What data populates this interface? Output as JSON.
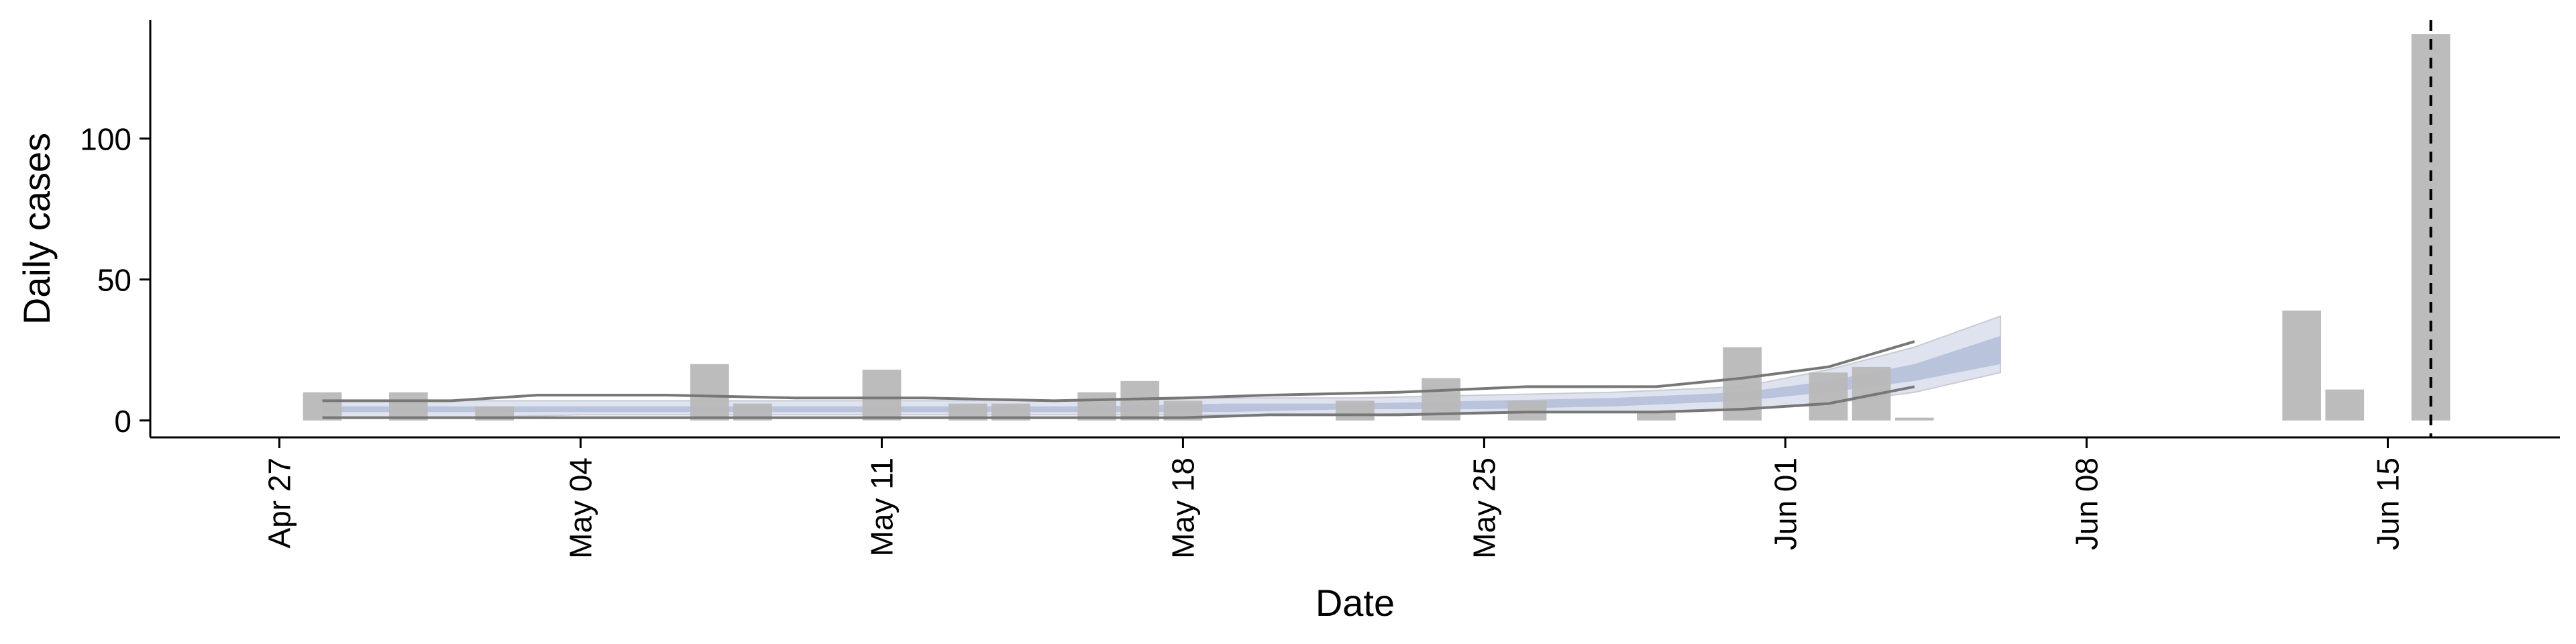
{
  "chart_data": {
    "type": "bar",
    "title": "",
    "xlabel": "Date",
    "ylabel": "Daily cases",
    "ylim": [
      -6,
      142
    ],
    "xlim": [
      "2020-04-24",
      "2020-06-19"
    ],
    "grid": false,
    "legend": "none",
    "y_ticks": [
      0,
      50,
      100
    ],
    "x_ticks": [
      {
        "date": "2020-04-27",
        "label": "Apr 27"
      },
      {
        "date": "2020-05-04",
        "label": "May 04"
      },
      {
        "date": "2020-05-11",
        "label": "May 11"
      },
      {
        "date": "2020-05-18",
        "label": "May 18"
      },
      {
        "date": "2020-05-25",
        "label": "May 25"
      },
      {
        "date": "2020-06-01",
        "label": "Jun 01"
      },
      {
        "date": "2020-06-08",
        "label": "Jun 08"
      },
      {
        "date": "2020-06-15",
        "label": "Jun 15"
      }
    ],
    "reference_line": {
      "date": "2020-06-16",
      "style": "dashed"
    },
    "bars": {
      "color": "#b8b8b8",
      "dates": [
        "2020-04-28",
        "2020-04-30",
        "2020-05-02",
        "2020-05-07",
        "2020-05-08",
        "2020-05-11",
        "2020-05-13",
        "2020-05-14",
        "2020-05-16",
        "2020-05-17",
        "2020-05-18",
        "2020-05-22",
        "2020-05-24",
        "2020-05-26",
        "2020-05-29",
        "2020-05-31",
        "2020-06-02",
        "2020-06-03",
        "2020-06-04",
        "2020-06-13",
        "2020-06-14",
        "2020-06-16"
      ],
      "values": [
        10,
        10,
        5,
        20,
        6,
        18,
        6,
        6,
        10,
        14,
        7,
        7,
        15,
        7,
        3,
        26,
        17,
        19,
        1,
        39,
        11,
        137
      ]
    },
    "band": {
      "dates": [
        "2020-04-28",
        "2020-05-01",
        "2020-05-04",
        "2020-05-07",
        "2020-05-10",
        "2020-05-13",
        "2020-05-16",
        "2020-05-19",
        "2020-05-22",
        "2020-05-25",
        "2020-05-28",
        "2020-05-31",
        "2020-06-02",
        "2020-06-04",
        "2020-06-06"
      ],
      "outer_lower": [
        1,
        1,
        2,
        2,
        2,
        2,
        2,
        2,
        2,
        3,
        3,
        4,
        6,
        10,
        17
      ],
      "outer_upper": [
        7,
        7,
        7,
        7,
        7,
        7,
        7,
        8,
        8,
        9,
        10,
        12,
        18,
        26,
        37
      ],
      "mid_lower": [
        3,
        3,
        3,
        3,
        3,
        3,
        3,
        3,
        4,
        4,
        5,
        7,
        10,
        14,
        20
      ],
      "mid_upper": [
        5,
        5,
        5,
        5,
        5,
        5,
        5,
        6,
        6,
        7,
        8,
        10,
        14,
        20,
        30
      ],
      "outer_color": "#dfe3ef",
      "mid_color": "#b9c3dc"
    },
    "envelope": {
      "color": "#777777",
      "dates": [
        "2020-04-28",
        "2020-05-01",
        "2020-05-03",
        "2020-05-06",
        "2020-05-09",
        "2020-05-12",
        "2020-05-15",
        "2020-05-18",
        "2020-05-20",
        "2020-05-23",
        "2020-05-26",
        "2020-05-29",
        "2020-05-31",
        "2020-06-02",
        "2020-06-04"
      ],
      "upper": [
        7,
        7,
        9,
        9,
        8,
        8,
        7,
        8,
        9,
        10,
        12,
        12,
        15,
        19,
        28
      ],
      "lower": [
        1,
        1,
        1,
        1,
        1,
        1,
        1,
        1,
        2,
        2,
        3,
        3,
        4,
        6,
        12
      ]
    }
  }
}
